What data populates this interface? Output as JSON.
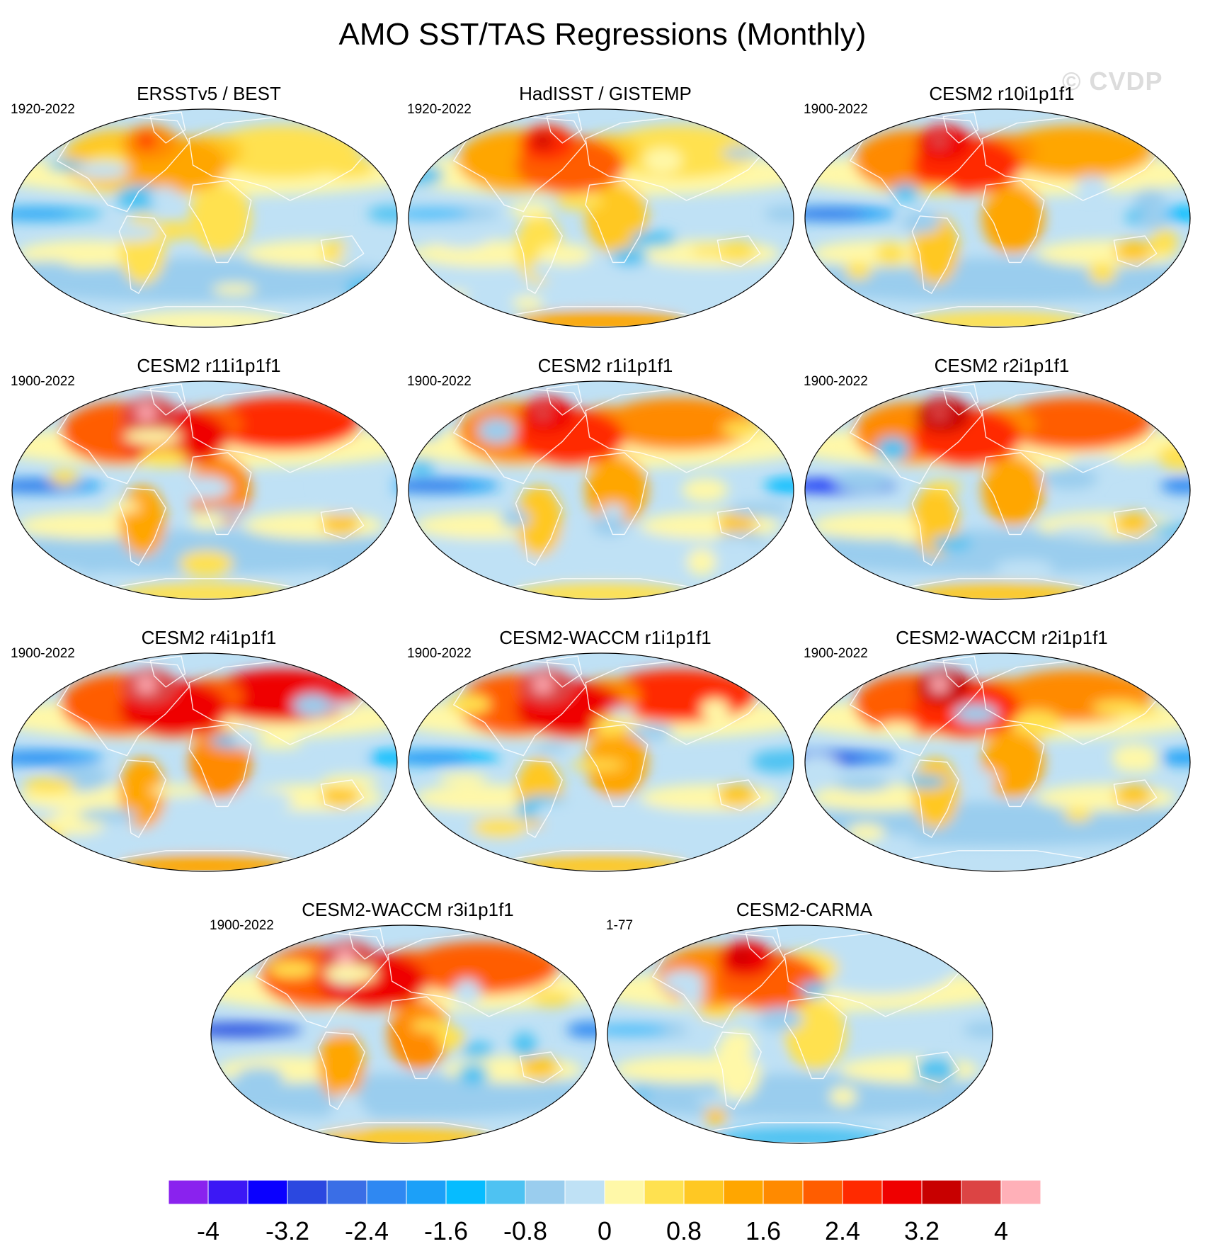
{
  "page": {
    "title": "AMO SST/TAS Regressions (Monthly)",
    "watermark": "© CVDP"
  },
  "chart_data": {
    "type": "heatmap",
    "title": "AMO SST/TAS Regressions (Monthly)",
    "projection": "Robinson global map",
    "colorbar": {
      "levels": [
        -4,
        -3.6,
        -3.2,
        -2.8,
        -2.4,
        -2.0,
        -1.6,
        -1.2,
        -0.8,
        -0.4,
        0,
        0.4,
        0.8,
        1.2,
        1.6,
        2.0,
        2.4,
        2.8,
        3.2,
        3.6,
        4
      ],
      "tick_labels": [
        "-4",
        "-3.2",
        "-2.4",
        "-1.6",
        "-0.8",
        "0",
        "0.8",
        "1.6",
        "2.4",
        "3.2",
        "4"
      ],
      "colors": [
        "#8a22ee",
        "#3c18f5",
        "#0a00ff",
        "#2b48e0",
        "#3a6ee6",
        "#2f88f2",
        "#1ca0f8",
        "#06bcff",
        "#4ec2f2",
        "#9acdee",
        "#bfe1f5",
        "#fff8a8",
        "#ffe150",
        "#ffc823",
        "#ffa600",
        "#ff8a00",
        "#ff5d00",
        "#ff2a00",
        "#ef0000",
        "#c80000",
        "#dc4444",
        "#ffb0b8"
      ]
    },
    "panels": [
      {
        "name": "ERSSTv5 / BEST",
        "period": "1920-2022",
        "pattern": {
          "natl": 1.8,
          "eur": 0.9,
          "asia": 0.5,
          "pac": -1.2,
          "so": -0.6,
          "ant": 0.3
        }
      },
      {
        "name": "HadISST / GISTEMP",
        "period": "1920-2022",
        "pattern": {
          "natl": 2.6,
          "eur": 1.0,
          "asia": 0.4,
          "pac": -0.8,
          "so": -0.4,
          "ant": 1.2
        }
      },
      {
        "name": "CESM2 r10i1p1f1",
        "period": "1900-2022",
        "pattern": {
          "natl": 3.0,
          "eur": 1.6,
          "asia": 1.4,
          "pac": -2.0,
          "so": -0.5,
          "ant": 0.6
        }
      },
      {
        "name": "CESM2 r11i1p1f1",
        "period": "1900-2022",
        "pattern": {
          "natl": 3.6,
          "eur": 2.0,
          "asia": 2.6,
          "pac": -2.0,
          "so": -0.6,
          "ant": 0.6
        }
      },
      {
        "name": "CESM2 r1i1p1f1",
        "period": "1900-2022",
        "pattern": {
          "natl": 3.0,
          "eur": 1.6,
          "asia": 1.8,
          "pac": -2.0,
          "so": -0.4,
          "ant": 0.6
        }
      },
      {
        "name": "CESM2 r2i1p1f1",
        "period": "1900-2022",
        "pattern": {
          "natl": 3.2,
          "eur": 1.8,
          "asia": 2.0,
          "pac": -2.8,
          "so": -0.5,
          "ant": 1.0
        }
      },
      {
        "name": "CESM2 r4i1p1f1",
        "period": "1900-2022",
        "pattern": {
          "natl": 3.8,
          "eur": 2.0,
          "asia": 2.8,
          "pac": -1.8,
          "so": -0.4,
          "ant": 1.2
        }
      },
      {
        "name": "CESM2-WACCM r1i1p1f1",
        "period": "1900-2022",
        "pattern": {
          "natl": 3.6,
          "eur": 1.8,
          "asia": 2.4,
          "pac": -1.6,
          "so": -0.3,
          "ant": 0.8
        }
      },
      {
        "name": "CESM2-WACCM r2i1p1f1",
        "period": "1900-2022",
        "pattern": {
          "natl": 3.4,
          "eur": 1.6,
          "asia": 1.8,
          "pac": -2.2,
          "so": -0.5,
          "ant": -0.4
        }
      },
      {
        "name": "CESM2-WACCM r3i1p1f1",
        "period": "1900-2022",
        "pattern": {
          "natl": 3.8,
          "eur": 2.0,
          "asia": 2.2,
          "pac": -2.6,
          "so": -0.5,
          "ant": 1.0
        }
      },
      {
        "name": "CESM2-CARMA",
        "period": "1-77",
        "pattern": {
          "natl": 2.8,
          "eur": 0.6,
          "asia": -0.4,
          "pac": -0.8,
          "so": -0.6,
          "ant": -1.0
        }
      }
    ]
  }
}
